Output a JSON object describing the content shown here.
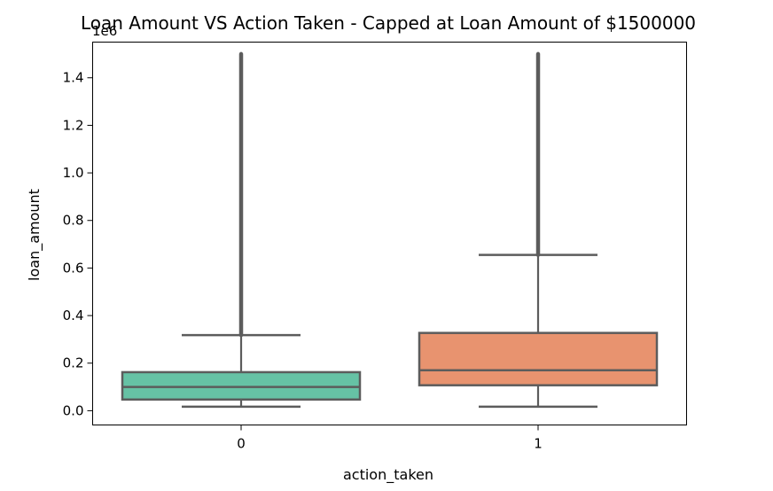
{
  "chart_data": {
    "type": "boxplot",
    "title": "Loan Amount VS Action Taken - Capped at Loan Amount of $1500000",
    "xlabel": "action_taken",
    "ylabel": "loan_amount",
    "y_offset_label": "1e6",
    "categories": [
      "0",
      "1"
    ],
    "ylim": [
      -0.06,
      1.55
    ],
    "yticks": [
      0.0,
      0.2,
      0.4,
      0.6,
      0.8,
      1.0,
      1.2,
      1.4
    ],
    "ytick_labels": [
      "0.0",
      "0.2",
      "0.4",
      "0.6",
      "0.8",
      "1.0",
      "1.2",
      "1.4"
    ],
    "grid": false,
    "legend": "none",
    "boxes": [
      {
        "category": "0",
        "color": "#66c2a5",
        "whisker_low": 0.017,
        "q1": 0.047,
        "median": 0.1,
        "q3": 0.162,
        "whisker_high": 0.318,
        "outliers_from": 0.318,
        "outliers_to": 1.5
      },
      {
        "category": "1",
        "color": "#e8936f",
        "whisker_low": 0.017,
        "q1": 0.107,
        "median": 0.17,
        "q3": 0.327,
        "whisker_high": 0.655,
        "outliers_from": 0.655,
        "outliers_to": 1.5
      }
    ],
    "line_color": "#5c5c5c"
  }
}
